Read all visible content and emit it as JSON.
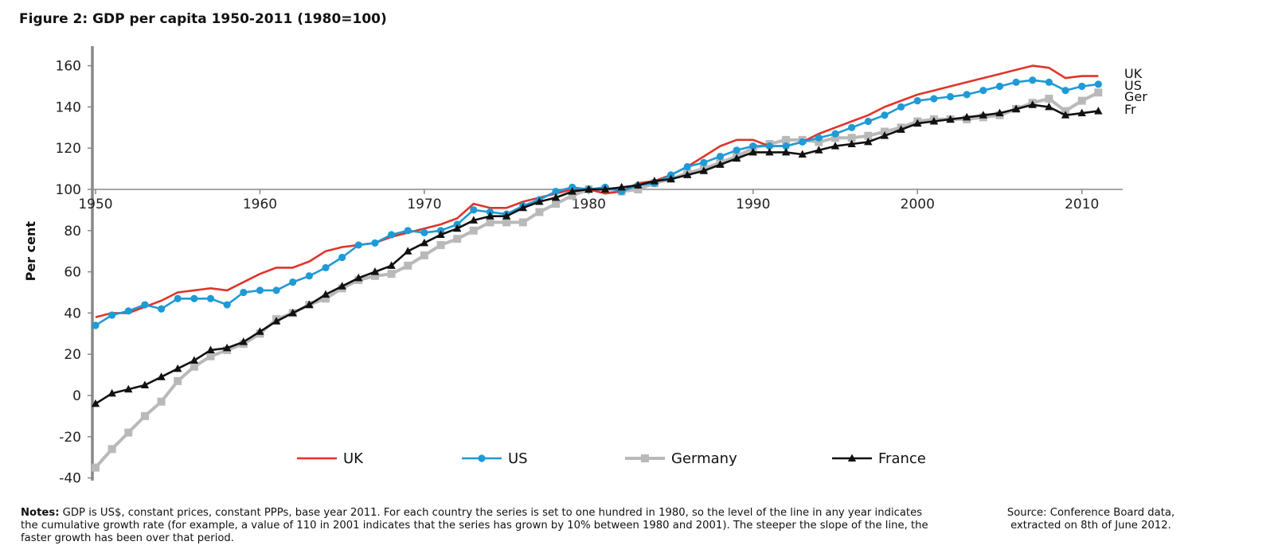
{
  "figure": {
    "title": "Figure 2: GDP per capita 1950-2011 (1980=100)",
    "notes_label": "Notes:",
    "notes_text": "GDP is US$, constant prices, constant PPPs, base year 2011. For each country the series is set to one hundred in 1980, so the level of the line in any year indicates the cumulative growth rate (for example, a value of 110 in 2001 indicates that the series has grown by 10% between 1980 and 2001). The steeper the slope of the line, the faster growth has been over that period.",
    "source_line1": "Source: Conference Board data,",
    "source_line2": "extracted on 8th of June 2012."
  },
  "chart_data": {
    "type": "line",
    "title": "Figure 2: GDP per capita 1950-2011 (1980=100)",
    "xlabel": "",
    "ylabel": "Per cent",
    "xlim": [
      1950,
      2012
    ],
    "ylim": [
      -40,
      170
    ],
    "x_axis_crosses_at": 100,
    "x_ticks": [
      1950,
      1960,
      1970,
      1980,
      1990,
      2000,
      2010
    ],
    "y_ticks": [
      -40,
      -20,
      0,
      20,
      40,
      60,
      80,
      100,
      120,
      140,
      160
    ],
    "grid": false,
    "legend_position": "bottom",
    "x": [
      1950,
      1951,
      1952,
      1953,
      1954,
      1955,
      1956,
      1957,
      1958,
      1959,
      1960,
      1961,
      1962,
      1963,
      1964,
      1965,
      1966,
      1967,
      1968,
      1969,
      1970,
      1971,
      1972,
      1973,
      1974,
      1975,
      1976,
      1977,
      1978,
      1979,
      1980,
      1981,
      1982,
      1983,
      1984,
      1985,
      1986,
      1987,
      1988,
      1989,
      1990,
      1991,
      1992,
      1993,
      1994,
      1995,
      1996,
      1997,
      1998,
      1999,
      2000,
      2001,
      2002,
      2003,
      2004,
      2005,
      2006,
      2007,
      2008,
      2009,
      2010,
      2011
    ],
    "series": [
      {
        "name": "UK",
        "end_label": "UK",
        "color": "#e0342a",
        "marker": "none",
        "values": [
          38,
          40,
          40,
          43,
          46,
          50,
          51,
          52,
          51,
          55,
          59,
          62,
          62,
          65,
          70,
          72,
          73,
          74,
          77,
          79,
          81,
          83,
          86,
          93,
          91,
          91,
          94,
          96,
          98,
          100,
          100,
          98,
          99,
          103,
          104,
          107,
          111,
          116,
          121,
          124,
          124,
          121,
          121,
          123,
          127,
          130,
          133,
          136,
          140,
          143,
          146,
          148,
          150,
          152,
          154,
          156,
          158,
          160,
          159,
          154,
          155,
          155
        ]
      },
      {
        "name": "US",
        "end_label": "US",
        "color": "#1e9ad6",
        "marker": "circle",
        "values": [
          34,
          39,
          41,
          44,
          42,
          47,
          47,
          47,
          44,
          50,
          51,
          51,
          55,
          58,
          62,
          67,
          73,
          74,
          78,
          80,
          79,
          80,
          83,
          90,
          89,
          88,
          92,
          95,
          99,
          101,
          100,
          101,
          99,
          102,
          103,
          107,
          111,
          113,
          116,
          119,
          121,
          121,
          121,
          123,
          125,
          127,
          130,
          133,
          136,
          140,
          143,
          144,
          145,
          146,
          148,
          150,
          152,
          153,
          152,
          148,
          150,
          151
        ]
      },
      {
        "name": "Germany",
        "end_label": "Ger",
        "color": "#b9b9b9",
        "marker": "square",
        "values": [
          -35,
          -26,
          -18,
          -10,
          -3,
          7,
          14,
          19,
          22,
          25,
          30,
          37,
          40,
          44,
          47,
          52,
          56,
          58,
          59,
          63,
          68,
          73,
          76,
          80,
          84,
          84,
          84,
          89,
          93,
          97,
          100,
          100,
          99,
          100,
          103,
          105,
          108,
          110,
          113,
          116,
          120,
          122,
          124,
          124,
          123,
          125,
          125,
          126,
          128,
          130,
          133,
          134,
          134,
          134,
          135,
          136,
          139,
          142,
          144,
          138,
          143,
          147
        ]
      },
      {
        "name": "France",
        "end_label": "Fr",
        "color": "#111111",
        "marker": "triangle",
        "values": [
          -4,
          1,
          3,
          5,
          9,
          13,
          17,
          22,
          23,
          26,
          31,
          36,
          40,
          44,
          49,
          53,
          57,
          60,
          63,
          70,
          74,
          78,
          81,
          85,
          87,
          87,
          91,
          94,
          96,
          99,
          100,
          100,
          101,
          102,
          104,
          105,
          107,
          109,
          112,
          115,
          118,
          118,
          118,
          117,
          119,
          121,
          122,
          123,
          126,
          129,
          132,
          133,
          134,
          135,
          136,
          137,
          139,
          141,
          140,
          136,
          137,
          138
        ]
      }
    ]
  }
}
